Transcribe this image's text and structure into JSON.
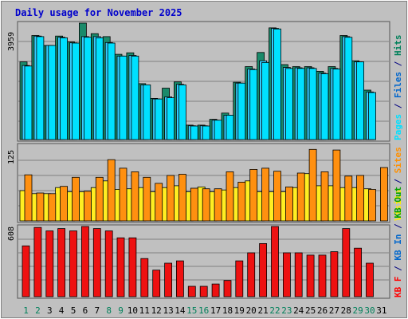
{
  "chart_data": {
    "type": "bar",
    "title": "Daily usage for November 2025",
    "categories": [
      "1",
      "2",
      "3",
      "4",
      "5",
      "6",
      "7",
      "8",
      "9",
      "10",
      "11",
      "12",
      "13",
      "14",
      "15",
      "16",
      "17",
      "18",
      "19",
      "20",
      "21",
      "22",
      "23",
      "24",
      "25",
      "26",
      "27",
      "28",
      "29",
      "30",
      "31"
    ],
    "weekend_days": [
      1,
      8,
      15,
      22,
      29
    ],
    "weekend_adjacent_days": [
      2,
      9,
      16,
      23,
      30
    ],
    "panels": [
      {
        "id": "top",
        "ytick_label": "3959",
        "ymax": 3959,
        "axis_labels": [
          {
            "text": "Pages",
            "color": "#00e0ff"
          },
          {
            "text": " / ",
            "color": "#000080"
          },
          {
            "text": "Files",
            "color": "#0066cc"
          },
          {
            "text": " / ",
            "color": "#000080"
          },
          {
            "text": "Hits",
            "color": "#00805a"
          }
        ],
        "series": [
          {
            "name": "Hits",
            "color": "#1a8a6a",
            "values": [
              2640,
              3540,
              3200,
              3520,
              3320,
              4000,
              3600,
              3500,
              2900,
              2950,
              1900,
              1400,
              1750,
              1960,
              490,
              490,
              690,
              900,
              1950,
              2480,
              2960,
              3800,
              2550,
              2480,
              2480,
              2320,
              2480,
              3540,
              2680,
              1680,
              0
            ]
          },
          {
            "name": "Files",
            "color": "#33ccff",
            "values": [
              2520,
              3520,
              3200,
              3480,
              3290,
              3500,
              3500,
              3300,
              2840,
              2860,
              1860,
              1380,
              1450,
              1880,
              470,
              470,
              660,
              830,
              1920,
              2400,
              2680,
              3780,
              2450,
              2440,
              2440,
              2260,
              2420,
              3500,
              2640,
              1620,
              0
            ]
          },
          {
            "name": "Pages",
            "color": "#00e0ff",
            "values": [
              2500,
              3500,
              3200,
              3460,
              3280,
              3480,
              3460,
              3280,
              2840,
              2840,
              1860,
              1380,
              1420,
              1860,
              460,
              460,
              660,
              830,
              1920,
              2380,
              2620,
              3760,
              2420,
              2420,
              2420,
              2240,
              2400,
              3480,
              2640,
              1600,
              0
            ]
          }
        ]
      },
      {
        "id": "middle",
        "ytick_label": "125",
        "ymax": 125,
        "axis_labels": [
          {
            "text": "Visits",
            "color": "#ffee00"
          },
          {
            "text": " / ",
            "color": "#000080"
          },
          {
            "text": "Sites",
            "color": "#ff9000"
          }
        ],
        "series": [
          {
            "name": "Visits",
            "color": "#ffee22",
            "values": [
              50,
              45,
              45,
              55,
              48,
              48,
              55,
              66,
              52,
              53,
              55,
              48,
              55,
              58,
              48,
              56,
              48,
              51,
              55,
              66,
              48,
              48,
              48,
              55,
              78,
              58,
              58,
              55,
              55,
              53,
              0
            ]
          },
          {
            "name": "Sites",
            "color": "#ff9010",
            "values": [
              76,
              46,
              45,
              57,
              72,
              49,
              72,
              101,
              87,
              81,
              72,
              62,
              75,
              77,
              54,
              53,
              53,
              81,
              64,
              85,
              87,
              82,
              56,
              79,
              118,
              81,
              117,
              74,
              75,
              52,
              88
            ]
          }
        ]
      },
      {
        "id": "bottom",
        "ytick_label": "608",
        "ymax": 608,
        "axis_labels": [
          {
            "text": "KB F",
            "color": "#ff0000"
          },
          {
            "text": " / ",
            "color": "#000080"
          },
          {
            "text": "KB In",
            "color": "#0066cc"
          },
          {
            "text": " / ",
            "color": "#000080"
          },
          {
            "text": "KB Out",
            "color": "#00a000"
          }
        ],
        "series": [
          {
            "name": "KB F",
            "color": "#ee1111",
            "values": [
              440,
              600,
              570,
              590,
              570,
              640,
              590,
              570,
              510,
              510,
              330,
              230,
              290,
              310,
              90,
              90,
              110,
              140,
              310,
              380,
              460,
              630,
              380,
              380,
              360,
              360,
              390,
              590,
              420,
              290,
              0
            ]
          }
        ]
      }
    ]
  }
}
